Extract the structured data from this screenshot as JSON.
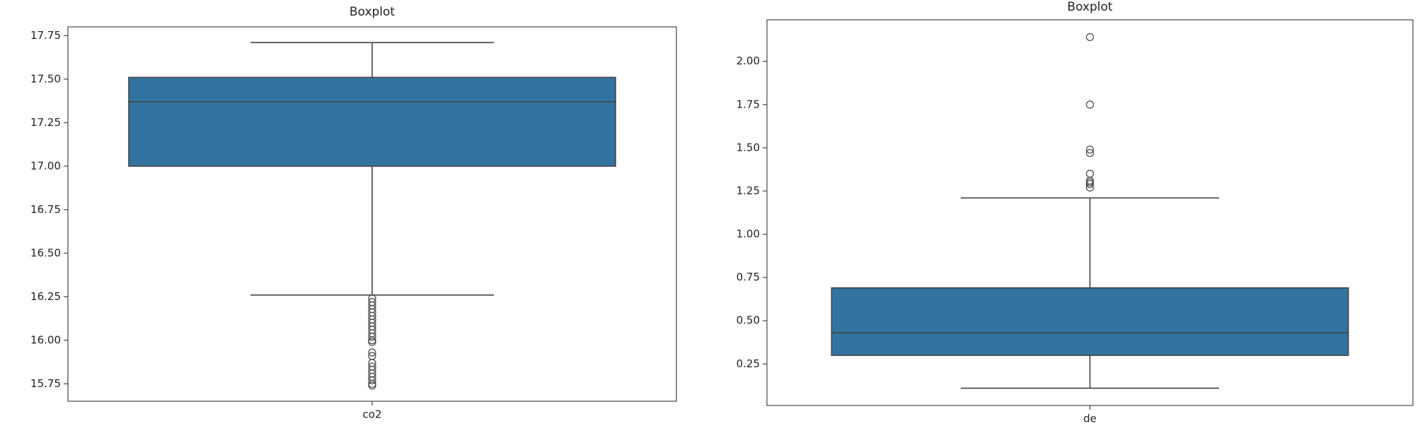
{
  "chart_data": [
    {
      "type": "box",
      "title": "Boxplot",
      "color": "#3274a1",
      "categories": [
        "co2"
      ],
      "boxes": [
        {
          "whislo": 16.26,
          "q1": 17.0,
          "median": 17.37,
          "q3": 17.51,
          "whishi": 17.71,
          "fliers": [
            16.24,
            16.22,
            16.2,
            16.18,
            16.16,
            16.14,
            16.12,
            16.1,
            16.08,
            16.06,
            16.04,
            16.02,
            16.0,
            15.99,
            15.93,
            15.91,
            15.87,
            15.85,
            15.83,
            15.81,
            15.79,
            15.77,
            15.75,
            15.74
          ]
        }
      ],
      "ylim": [
        15.65,
        17.8
      ],
      "yticks": [
        15.75,
        {
          "value": 16,
          "label": "16.00"
        },
        16.25,
        {
          "value": 16.5,
          "label": "16.50"
        },
        16.75,
        {
          "value": 17,
          "label": "17.00"
        },
        17.25,
        {
          "value": 17.5,
          "label": "17.50"
        },
        17.75
      ]
    },
    {
      "type": "box",
      "title": "Boxplot",
      "color": "#3274a1",
      "categories": [
        "de"
      ],
      "boxes": [
        {
          "whislo": 0.11,
          "q1": 0.3,
          "median": 0.43,
          "q3": 0.69,
          "whishi": 1.21,
          "fliers": [
            2.14,
            1.75,
            1.49,
            1.47,
            1.35,
            1.31,
            1.3,
            1.29,
            1.27
          ]
        }
      ],
      "ylim": [
        0.01,
        2.24
      ],
      "yticks": [
        0.25,
        {
          "value": 0.5,
          "label": "0.50"
        },
        0.75,
        {
          "value": 1,
          "label": "1.00"
        },
        1.25,
        {
          "value": 1.5,
          "label": "1.50"
        },
        1.75,
        {
          "value": 2,
          "label": "2.00"
        }
      ]
    }
  ]
}
